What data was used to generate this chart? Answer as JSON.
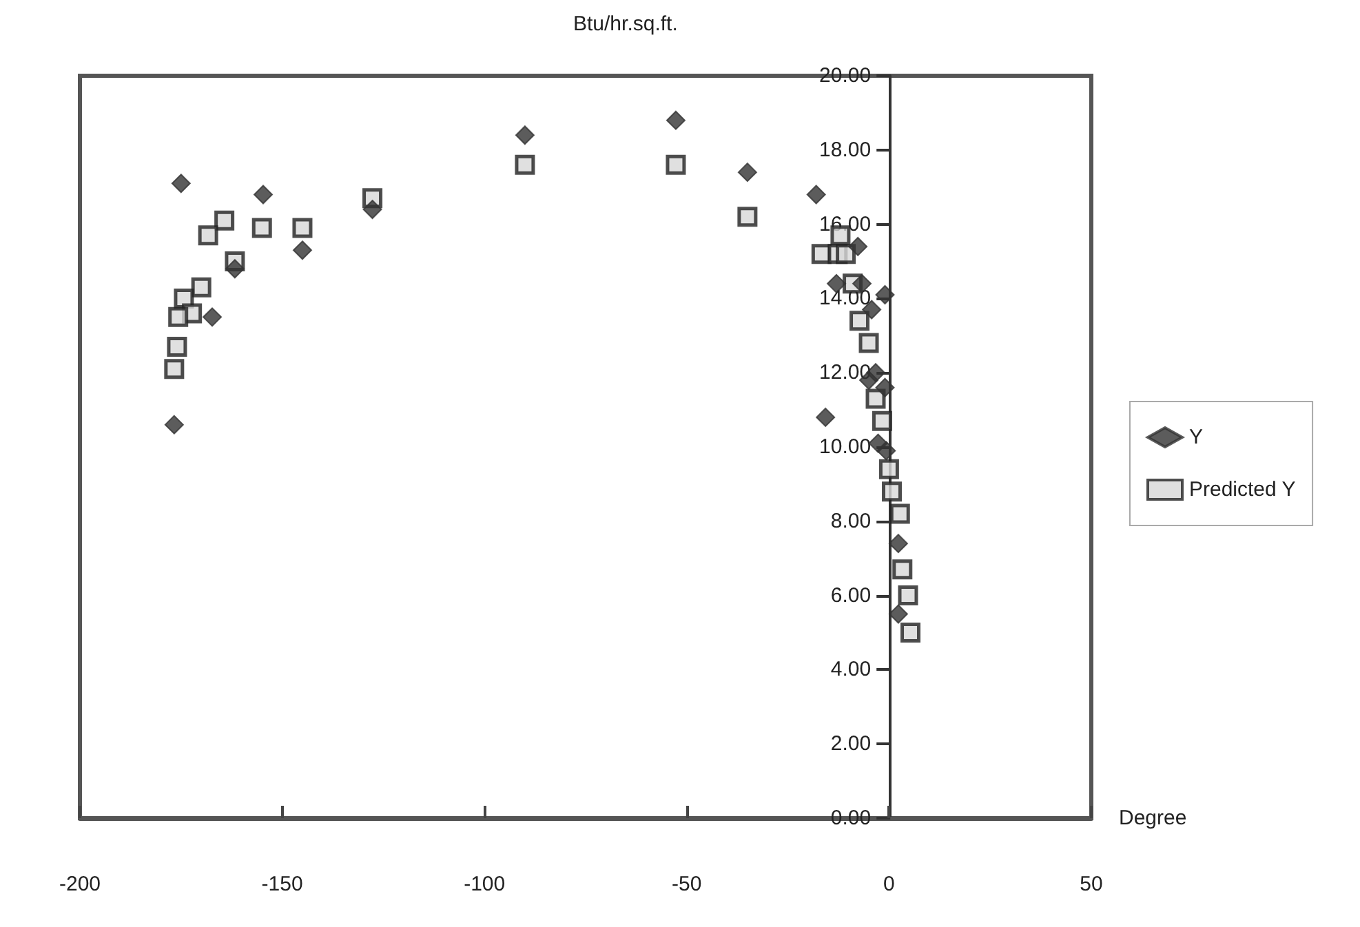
{
  "chart_data": {
    "type": "scatter",
    "ylabel": "Btu/hr.sq.ft.",
    "xlabel": "Degree",
    "xlim": [
      -200,
      50
    ],
    "xticks": [
      -200,
      -150,
      -100,
      -50,
      0,
      50
    ],
    "ylim": [
      0,
      20
    ],
    "yticks": [
      {
        "value": 0,
        "label": "0.00"
      },
      {
        "value": 2,
        "label": "2.00"
      },
      {
        "value": 4,
        "label": "4.00"
      },
      {
        "value": 6,
        "label": "6.00"
      },
      {
        "value": 8,
        "label": "8.00"
      },
      {
        "value": 10,
        "label": "10.00"
      },
      {
        "value": 12,
        "label": "12.00"
      },
      {
        "value": 14,
        "label": "14.00"
      },
      {
        "value": 16,
        "label": "16.00"
      },
      {
        "value": 18,
        "label": "18.00"
      },
      {
        "value": 20,
        "label": "20.00"
      }
    ],
    "grid": false,
    "legend": "right",
    "series": [
      {
        "name": "Y",
        "color": "#333333",
        "marker": "diamond",
        "x": [
          -175,
          -176.7,
          -167.3,
          -161.7,
          -154.7,
          -145,
          -127.7,
          -90,
          -52.7,
          -35,
          -18,
          -15.7,
          -13,
          -7.7,
          -6.7,
          -4.3,
          -1,
          -3.3,
          -5,
          -1,
          -2.7,
          -0.7,
          2.3,
          2.3
        ],
        "values": [
          17.1,
          10.6,
          13.5,
          14.8,
          16.8,
          15.3,
          16.4,
          18.4,
          18.8,
          17.4,
          16.8,
          10.8,
          14.4,
          15.4,
          14.4,
          13.7,
          14.1,
          12,
          11.8,
          11.6,
          10.1,
          9.9,
          7.4,
          5.5
        ]
      },
      {
        "name": "Predicted Y",
        "color": "#d8d8d8",
        "marker": "square",
        "x": [
          -164.3,
          -168.3,
          -155,
          -145,
          -161.7,
          -170,
          -174.3,
          -172.3,
          -175.7,
          -176,
          -176.7,
          -127.7,
          -90,
          -52.7,
          -35,
          -16.7,
          -12.7,
          -12,
          -10.7,
          -9,
          -7.3,
          -5,
          -3.3,
          -1.7,
          0,
          0.7,
          2.7,
          3.3,
          4.7,
          5.3
        ],
        "values": [
          16.1,
          15.7,
          15.9,
          15.9,
          15,
          14.3,
          14,
          13.6,
          13.5,
          12.7,
          12.1,
          16.7,
          17.6,
          17.6,
          16.2,
          15.2,
          15.2,
          15.7,
          15.2,
          14.4,
          13.4,
          12.8,
          11.3,
          10.7,
          9.4,
          8.8,
          8.2,
          6.7,
          6,
          5
        ]
      }
    ]
  }
}
